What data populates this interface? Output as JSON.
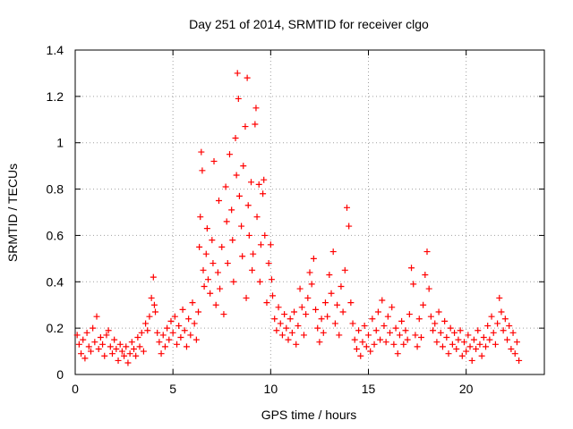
{
  "chart_data": {
    "type": "scatter",
    "title": "Day 251 of 2014, SRMTID for receiver clgo",
    "xlabel": "GPS time / hours",
    "ylabel": "SRMTID / TECUs",
    "xlim": [
      0,
      24
    ],
    "ylim": [
      0,
      1.4
    ],
    "xticks": [
      0,
      5,
      10,
      15,
      20
    ],
    "yticks": [
      0,
      0.2,
      0.4,
      0.6,
      0.8,
      1,
      1.2,
      1.4
    ],
    "xtick_labels": [
      "0",
      "5",
      "10",
      "15",
      "20"
    ],
    "ytick_labels": [
      "0",
      "0.2",
      "0.4",
      "0.6",
      "0.8",
      "1",
      "1.2",
      "1.4"
    ],
    "grid": true,
    "marker": "+",
    "color": "#ff0000",
    "series": [
      {
        "name": "SRMTID",
        "points": [
          [
            0.1,
            0.17
          ],
          [
            0.2,
            0.13
          ],
          [
            0.3,
            0.09
          ],
          [
            0.4,
            0.15
          ],
          [
            0.5,
            0.07
          ],
          [
            0.6,
            0.18
          ],
          [
            0.7,
            0.12
          ],
          [
            0.8,
            0.1
          ],
          [
            0.9,
            0.2
          ],
          [
            1.0,
            0.14
          ],
          [
            1.1,
            0.25
          ],
          [
            1.2,
            0.11
          ],
          [
            1.3,
            0.16
          ],
          [
            1.4,
            0.13
          ],
          [
            1.5,
            0.08
          ],
          [
            1.6,
            0.17
          ],
          [
            1.7,
            0.19
          ],
          [
            1.8,
            0.12
          ],
          [
            1.9,
            0.09
          ],
          [
            2.0,
            0.15
          ],
          [
            2.1,
            0.11
          ],
          [
            2.2,
            0.06
          ],
          [
            2.3,
            0.13
          ],
          [
            2.4,
            0.1
          ],
          [
            2.5,
            0.08
          ],
          [
            2.6,
            0.12
          ],
          [
            2.7,
            0.05
          ],
          [
            2.8,
            0.09
          ],
          [
            2.9,
            0.14
          ],
          [
            3.0,
            0.11
          ],
          [
            3.1,
            0.08
          ],
          [
            3.2,
            0.16
          ],
          [
            3.3,
            0.12
          ],
          [
            3.4,
            0.18
          ],
          [
            3.5,
            0.1
          ],
          [
            3.6,
            0.22
          ],
          [
            3.7,
            0.19
          ],
          [
            3.8,
            0.25
          ],
          [
            3.9,
            0.33
          ],
          [
            4.0,
            0.42
          ],
          [
            4.05,
            0.3
          ],
          [
            4.1,
            0.27
          ],
          [
            4.2,
            0.18
          ],
          [
            4.3,
            0.14
          ],
          [
            4.4,
            0.09
          ],
          [
            4.5,
            0.17
          ],
          [
            4.6,
            0.12
          ],
          [
            4.7,
            0.2
          ],
          [
            4.8,
            0.15
          ],
          [
            4.9,
            0.23
          ],
          [
            5.0,
            0.18
          ],
          [
            5.1,
            0.25
          ],
          [
            5.2,
            0.13
          ],
          [
            5.3,
            0.21
          ],
          [
            5.4,
            0.16
          ],
          [
            5.5,
            0.28
          ],
          [
            5.6,
            0.19
          ],
          [
            5.7,
            0.12
          ],
          [
            5.8,
            0.24
          ],
          [
            5.9,
            0.17
          ],
          [
            6.0,
            0.31
          ],
          [
            6.1,
            0.22
          ],
          [
            6.2,
            0.15
          ],
          [
            6.3,
            0.27
          ],
          [
            6.35,
            0.55
          ],
          [
            6.4,
            0.68
          ],
          [
            6.45,
            0.96
          ],
          [
            6.5,
            0.88
          ],
          [
            6.55,
            0.45
          ],
          [
            6.6,
            0.38
          ],
          [
            6.7,
            0.52
          ],
          [
            6.75,
            0.63
          ],
          [
            6.8,
            0.41
          ],
          [
            6.9,
            0.35
          ],
          [
            7.0,
            0.58
          ],
          [
            7.05,
            0.48
          ],
          [
            7.1,
            0.92
          ],
          [
            7.2,
            0.3
          ],
          [
            7.3,
            0.44
          ],
          [
            7.35,
            0.75
          ],
          [
            7.4,
            0.37
          ],
          [
            7.5,
            0.55
          ],
          [
            7.6,
            0.26
          ],
          [
            7.7,
            0.81
          ],
          [
            7.75,
            0.66
          ],
          [
            7.8,
            0.48
          ],
          [
            7.9,
            0.95
          ],
          [
            8.0,
            0.71
          ],
          [
            8.05,
            0.58
          ],
          [
            8.1,
            0.4
          ],
          [
            8.2,
            1.02
          ],
          [
            8.25,
            0.86
          ],
          [
            8.3,
            1.3
          ],
          [
            8.35,
            1.19
          ],
          [
            8.4,
            0.77
          ],
          [
            8.5,
            0.64
          ],
          [
            8.55,
            0.51
          ],
          [
            8.6,
            0.9
          ],
          [
            8.7,
            1.07
          ],
          [
            8.75,
            0.33
          ],
          [
            8.8,
            1.28
          ],
          [
            8.85,
            0.73
          ],
          [
            8.9,
            0.6
          ],
          [
            9.0,
            0.83
          ],
          [
            9.05,
            0.45
          ],
          [
            9.1,
            0.52
          ],
          [
            9.2,
            1.08
          ],
          [
            9.25,
            1.15
          ],
          [
            9.3,
            0.68
          ],
          [
            9.4,
            0.82
          ],
          [
            9.45,
            0.4
          ],
          [
            9.5,
            0.56
          ],
          [
            9.6,
            0.78
          ],
          [
            9.65,
            0.84
          ],
          [
            9.7,
            0.6
          ],
          [
            9.8,
            0.31
          ],
          [
            9.9,
            0.48
          ],
          [
            10.0,
            0.56
          ],
          [
            10.05,
            0.41
          ],
          [
            10.1,
            0.34
          ],
          [
            10.2,
            0.24
          ],
          [
            10.3,
            0.19
          ],
          [
            10.4,
            0.29
          ],
          [
            10.5,
            0.22
          ],
          [
            10.6,
            0.17
          ],
          [
            10.7,
            0.26
          ],
          [
            10.8,
            0.2
          ],
          [
            10.9,
            0.15
          ],
          [
            11.0,
            0.24
          ],
          [
            11.1,
            0.18
          ],
          [
            11.2,
            0.27
          ],
          [
            11.3,
            0.13
          ],
          [
            11.4,
            0.21
          ],
          [
            11.5,
            0.37
          ],
          [
            11.6,
            0.29
          ],
          [
            11.7,
            0.17
          ],
          [
            11.8,
            0.26
          ],
          [
            11.9,
            0.33
          ],
          [
            12.0,
            0.44
          ],
          [
            12.1,
            0.39
          ],
          [
            12.2,
            0.5
          ],
          [
            12.3,
            0.28
          ],
          [
            12.4,
            0.2
          ],
          [
            12.5,
            0.14
          ],
          [
            12.6,
            0.24
          ],
          [
            12.7,
            0.18
          ],
          [
            12.8,
            0.31
          ],
          [
            12.9,
            0.25
          ],
          [
            13.0,
            0.43
          ],
          [
            13.1,
            0.35
          ],
          [
            13.2,
            0.53
          ],
          [
            13.3,
            0.22
          ],
          [
            13.4,
            0.3
          ],
          [
            13.5,
            0.17
          ],
          [
            13.6,
            0.38
          ],
          [
            13.7,
            0.27
          ],
          [
            13.8,
            0.45
          ],
          [
            13.9,
            0.72
          ],
          [
            14.0,
            0.64
          ],
          [
            14.1,
            0.31
          ],
          [
            14.2,
            0.22
          ],
          [
            14.3,
            0.15
          ],
          [
            14.4,
            0.11
          ],
          [
            14.5,
            0.19
          ],
          [
            14.6,
            0.08
          ],
          [
            14.7,
            0.14
          ],
          [
            14.8,
            0.21
          ],
          [
            14.9,
            0.12
          ],
          [
            15.0,
            0.17
          ],
          [
            15.1,
            0.1
          ],
          [
            15.2,
            0.24
          ],
          [
            15.3,
            0.13
          ],
          [
            15.4,
            0.19
          ],
          [
            15.5,
            0.27
          ],
          [
            15.6,
            0.15
          ],
          [
            15.7,
            0.32
          ],
          [
            15.8,
            0.21
          ],
          [
            15.9,
            0.14
          ],
          [
            16.0,
            0.25
          ],
          [
            16.1,
            0.18
          ],
          [
            16.2,
            0.29
          ],
          [
            16.3,
            0.13
          ],
          [
            16.4,
            0.2
          ],
          [
            16.5,
            0.09
          ],
          [
            16.6,
            0.17
          ],
          [
            16.7,
            0.23
          ],
          [
            16.8,
            0.13
          ],
          [
            16.9,
            0.19
          ],
          [
            17.0,
            0.15
          ],
          [
            17.1,
            0.26
          ],
          [
            17.2,
            0.46
          ],
          [
            17.3,
            0.39
          ],
          [
            17.4,
            0.17
          ],
          [
            17.5,
            0.12
          ],
          [
            17.6,
            0.24
          ],
          [
            17.7,
            0.16
          ],
          [
            17.8,
            0.3
          ],
          [
            17.9,
            0.43
          ],
          [
            18.0,
            0.53
          ],
          [
            18.1,
            0.37
          ],
          [
            18.2,
            0.25
          ],
          [
            18.3,
            0.19
          ],
          [
            18.4,
            0.22
          ],
          [
            18.5,
            0.14
          ],
          [
            18.6,
            0.27
          ],
          [
            18.7,
            0.18
          ],
          [
            18.8,
            0.12
          ],
          [
            18.9,
            0.23
          ],
          [
            19.0,
            0.16
          ],
          [
            19.1,
            0.09
          ],
          [
            19.2,
            0.2
          ],
          [
            19.3,
            0.13
          ],
          [
            19.4,
            0.18
          ],
          [
            19.5,
            0.11
          ],
          [
            19.6,
            0.15
          ],
          [
            19.7,
            0.19
          ],
          [
            19.8,
            0.08
          ],
          [
            19.9,
            0.14
          ],
          [
            20.0,
            0.1
          ],
          [
            20.1,
            0.17
          ],
          [
            20.2,
            0.12
          ],
          [
            20.3,
            0.06
          ],
          [
            20.4,
            0.15
          ],
          [
            20.5,
            0.11
          ],
          [
            20.6,
            0.19
          ],
          [
            20.7,
            0.13
          ],
          [
            20.8,
            0.08
          ],
          [
            20.9,
            0.16
          ],
          [
            21.0,
            0.12
          ],
          [
            21.1,
            0.21
          ],
          [
            21.2,
            0.15
          ],
          [
            21.3,
            0.25
          ],
          [
            21.4,
            0.18
          ],
          [
            21.5,
            0.13
          ],
          [
            21.6,
            0.22
          ],
          [
            21.7,
            0.33
          ],
          [
            21.8,
            0.27
          ],
          [
            21.9,
            0.19
          ],
          [
            22.0,
            0.24
          ],
          [
            22.1,
            0.15
          ],
          [
            22.2,
            0.21
          ],
          [
            22.3,
            0.11
          ],
          [
            22.4,
            0.18
          ],
          [
            22.5,
            0.09
          ],
          [
            22.6,
            0.14
          ],
          [
            22.7,
            0.06
          ]
        ]
      }
    ]
  }
}
